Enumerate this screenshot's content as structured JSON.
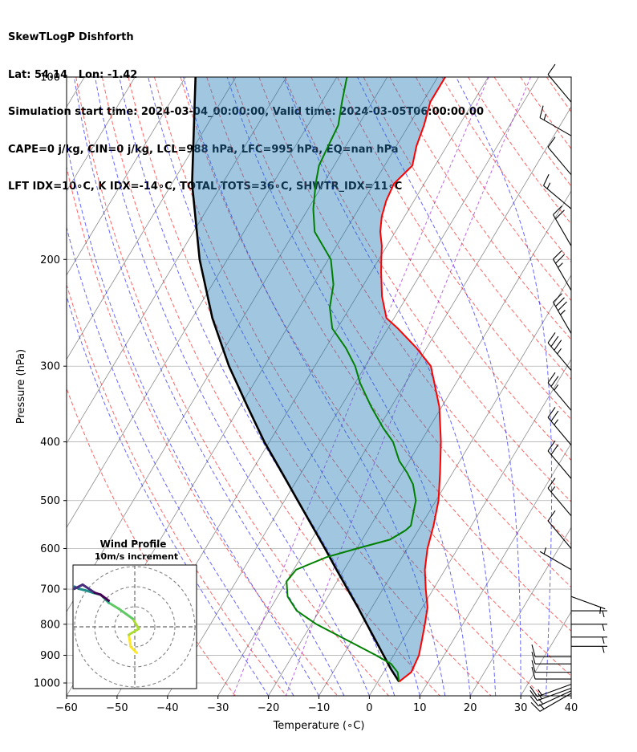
{
  "header": {
    "line1": "SkewTLogP Dishforth",
    "line2": "Lat: 54.14   Lon: -1.42",
    "line3": "Simulation start time: 2024-03-04_00:00:00, Valid time: 2024-03-05T06:00:00.00",
    "line4": "CAPE=0 j/kg, CIN=0 j/kg, LCL=988 hPa, LFC=995 hPa, EQ=nan hPa",
    "line5": "LFT IDX=10∘C, K IDX=-14∘C, TOTAL TOTS=36∘C, SHWTR_IDX=11∘C"
  },
  "chart_data": [
    {
      "type": "line",
      "chart": "skew-t log-p",
      "xlabel": "Temperature (∘C)",
      "ylabel": "Pressure (hPa)",
      "xlim": [
        -60,
        40
      ],
      "ylim": [
        1050,
        100
      ],
      "y_scale": "log",
      "x_ticks": [
        "−60",
        "−50",
        "−40",
        "−30",
        "−20",
        "−10",
        "0",
        "10",
        "20",
        "30",
        "40"
      ],
      "y_ticks": [
        "100",
        "200",
        "300",
        "400",
        "500",
        "600",
        "700",
        "800",
        "900",
        "1000"
      ],
      "grid": true,
      "colors": {
        "temperature": "#ff0000",
        "dewpoint": "#008000",
        "parcel": "#000000",
        "cin_fill": "#1f77b4",
        "dry_adiabat": "#ff0000",
        "moist_adiabat": "#0000ff",
        "mixing_ratio": "#9400d3",
        "isotherm": "#808080"
      },
      "series": [
        {
          "role": "temperature",
          "pressure": [
            995,
            960,
            900,
            850,
            800,
            750,
            700,
            650,
            600,
            550,
            500,
            450,
            400,
            350,
            300,
            280,
            260,
            250,
            230,
            210,
            200,
            190,
            180,
            170,
            160,
            150,
            140,
            130,
            120,
            110,
            105,
            100
          ],
          "temp": [
            4.2,
            5.5,
            5.0,
            3.8,
            2.5,
            1.0,
            -1.5,
            -4.0,
            -6.0,
            -7.5,
            -9.5,
            -12.5,
            -16.0,
            -20.5,
            -27.0,
            -32.0,
            -38.0,
            -41.5,
            -45.0,
            -48.0,
            -49.5,
            -51.0,
            -53.0,
            -54.5,
            -55.5,
            -56.0,
            -54.5,
            -56.0,
            -57.0,
            -58.5,
            -58.5,
            -58.5
          ]
        },
        {
          "role": "dewpoint",
          "pressure": [
            995,
            960,
            930,
            900,
            850,
            800,
            760,
            720,
            680,
            650,
            620,
            600,
            580,
            560,
            550,
            500,
            470,
            450,
            430,
            400,
            380,
            350,
            320,
            300,
            280,
            260,
            240,
            220,
            200,
            180,
            165,
            150,
            140,
            130,
            120,
            110,
            100
          ],
          "temp": [
            4.2,
            2.8,
            0.5,
            -3.5,
            -11.0,
            -19.0,
            -24.5,
            -28.0,
            -30.0,
            -29.5,
            -25.0,
            -20.0,
            -14.5,
            -12.5,
            -12.0,
            -14.0,
            -16.5,
            -19.0,
            -22.0,
            -25.5,
            -29.0,
            -34.0,
            -39.0,
            -42.0,
            -46.0,
            -51.0,
            -54.0,
            -56.0,
            -59.5,
            -66.0,
            -69.0,
            -71.5,
            -73.0,
            -73.5,
            -74.0,
            -76.0,
            -78.0
          ]
        },
        {
          "role": "parcel",
          "pressure": [
            995,
            950,
            900,
            850,
            800,
            750,
            700,
            650,
            600,
            550,
            500,
            450,
            400,
            350,
            300,
            250,
            200,
            150,
            100
          ],
          "temp": [
            4.2,
            1.2,
            -2.0,
            -5.4,
            -9.0,
            -12.8,
            -17.0,
            -21.5,
            -26.3,
            -31.6,
            -37.4,
            -43.8,
            -51.0,
            -58.5,
            -67.0,
            -76.0,
            -85.5,
            -96.0,
            -108.0
          ]
        }
      ],
      "wind_barbs": {
        "pressure": [
          1040,
          1030,
          1020,
          1005,
          985,
          960,
          930,
          905,
          870,
          840,
          800,
          760,
          720,
          650,
          600,
          530,
          460,
          405,
          355,
          305,
          265,
          225,
          190,
          165,
          145,
          125,
          110
        ],
        "speed_kt": [
          15,
          15,
          15,
          15,
          10,
          10,
          10,
          10,
          5,
          5,
          5,
          5,
          5,
          5,
          10,
          15,
          20,
          25,
          25,
          35,
          35,
          25,
          20,
          15,
          10,
          15,
          10
        ],
        "direction_deg": [
          240,
          245,
          250,
          250,
          270,
          270,
          270,
          270,
          90,
          90,
          90,
          90,
          110,
          300,
          320,
          320,
          320,
          320,
          320,
          320,
          330,
          330,
          330,
          310,
          320,
          300,
          320
        ]
      }
    },
    {
      "type": "line",
      "chart": "hodograph",
      "title": "Wind Profile",
      "subtitle": "10m/s increment",
      "rings": [
        10,
        20,
        30
      ],
      "grid": true,
      "series": [
        {
          "u": [
            1,
            -2,
            -3,
            2,
            -1,
            -8,
            -13,
            -17,
            -21,
            -24,
            -28,
            -30,
            -34,
            -33,
            -30,
            -26,
            -20,
            -17,
            -13
          ],
          "v": [
            -13,
            -10,
            -4,
            -1,
            4,
            9,
            12,
            16,
            17,
            18,
            19,
            20,
            19,
            18,
            19,
            21,
            17,
            16,
            13
          ]
        }
      ]
    }
  ]
}
